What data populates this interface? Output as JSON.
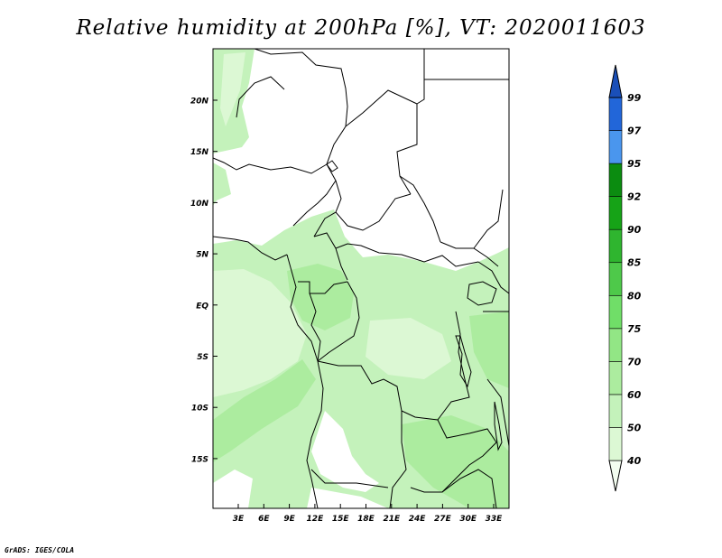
{
  "title": "Relative humidity at 200hPa [%], VT: 2020011603",
  "credit": "GrADS: IGES/COLA",
  "map": {
    "lat_ticks": [
      "20N",
      "15N",
      "10N",
      "5N",
      "EQ",
      "5S",
      "10S",
      "15S"
    ],
    "lon_ticks": [
      "3E",
      "6E",
      "9E",
      "12E",
      "15E",
      "18E",
      "21E",
      "24E",
      "27E",
      "30E",
      "33E"
    ]
  },
  "colorbar": {
    "levels": [
      "40",
      "50",
      "60",
      "70",
      "75",
      "80",
      "85",
      "90",
      "92",
      "95",
      "97",
      "99"
    ],
    "colors": [
      "#f3fdf0",
      "#dcf8d4",
      "#c4f2bb",
      "#acec9f",
      "#92e685",
      "#70de68",
      "#4ec94a",
      "#2fb52f",
      "#16a317",
      "#0b8c10",
      "#4a96ee",
      "#2266d9",
      "#1a4fb8"
    ]
  },
  "palette": {
    "land": "#ffffff",
    "border": "#000000"
  }
}
